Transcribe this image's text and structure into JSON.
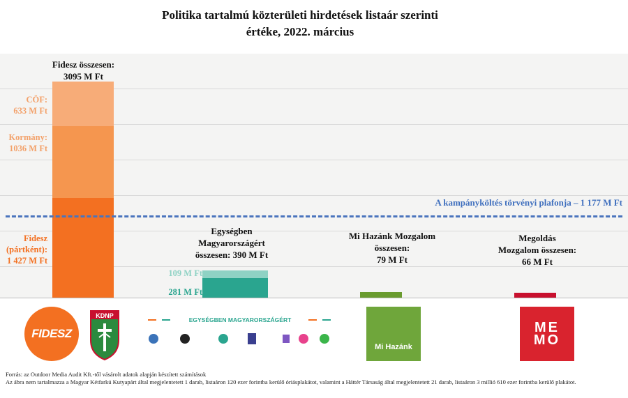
{
  "title_line1": "Politika tartalmú közterületi hirdetések listaár szerinti",
  "title_line2": "értéke, 2022. március",
  "chart_data": {
    "type": "bar",
    "stacked": true,
    "unit": "M Ft",
    "ylim": [
      0,
      3300
    ],
    "categories": [
      "Fidesz",
      "Egységben Magyarországért",
      "Mi Hazánk Mozgalom",
      "Megoldás Mozgalom"
    ],
    "segments": [
      {
        "category": "Fidesz",
        "label": "Fidesz (pártként): 1 427 M Ft",
        "value": 1427,
        "color": "#f37021"
      },
      {
        "category": "Fidesz",
        "label": "Kormány: 1036 M Ft",
        "value": 1036,
        "color": "#f5964f"
      },
      {
        "category": "Fidesz",
        "label": "CÖF: 633 M Ft",
        "value": 633,
        "color": "#f7ac78"
      },
      {
        "category": "Egységben Magyarországért",
        "label": "281 M Ft",
        "value": 281,
        "color": "#2aa58f"
      },
      {
        "category": "Egységben Magyarországért",
        "label": "109 M Ft",
        "value": 109,
        "color": "#8fd2c4"
      },
      {
        "category": "Mi Hazánk Mozgalom",
        "label": "",
        "value": 79,
        "color": "#6a9b2f"
      },
      {
        "category": "Megoldás Mozgalom",
        "label": "",
        "value": 66,
        "color": "#c8102e"
      }
    ],
    "totals": [
      {
        "category": "Fidesz",
        "text": "Fidesz összesen: 3095 M Ft",
        "value": 3095
      },
      {
        "category": "Egységben Magyarországért",
        "text": "Egységben Magyarországért összesen: 390 M Ft",
        "value": 390
      },
      {
        "category": "Mi Hazánk Mozgalom",
        "text": "Mi Hazánk Mozgalom összesen: 79 M Ft",
        "value": 79
      },
      {
        "category": "Megoldás Mozgalom",
        "text": "Megoldás Mozgalom összesen: 66 M Ft",
        "value": 66
      }
    ],
    "reference_line": {
      "label": "A kampányköltés törvényi plafonja – 1 177 M Ft",
      "value": 1177,
      "color": "#4a74bd"
    }
  },
  "labels": {
    "fidesz_total": [
      "Fidesz összesen:",
      "3095 M Ft"
    ],
    "cof": [
      "CÖF:",
      "633 M Ft"
    ],
    "kormany": [
      "Kormány:",
      "1036 M Ft"
    ],
    "fidesz_part": [
      "Fidesz",
      "(pártként):",
      "1 427 M Ft"
    ],
    "eme_total": [
      "Egységben",
      "Magyarországért",
      "összesen: 390 M Ft"
    ],
    "eme_109": "109 M Ft",
    "eme_281": "281 M Ft",
    "mihazank_total": [
      "Mi Hazánk Mozgalom",
      "összesen:",
      "79 M Ft"
    ],
    "memo_total": [
      "Megoldás",
      "Mozgalom összesen:",
      "66 M Ft"
    ]
  },
  "logos": {
    "fidesz": "FIDESZ",
    "kdnp": "KDNP",
    "eme": "EGYSÉGBEN MAGYARORSZÁGÉRT",
    "mihazank": "Mi Hazánk",
    "memo": "MEMO"
  },
  "footnote": {
    "line1": "Forrás: az Outdoor Media Audit Kft.-től vásárolt adatok alapján készített számítások",
    "line2": "Az ábra nem tartalmazza a Magyar Kétfarkú Kutyapárt által megjelentetett 1 darab, listaáron 120 ezer forintba kerülő óriásplakátot, valamint a Háttér Társaság által megjelentetett 21 darab, listaáron 3 millió 610 ezer forintba kerülő plakátot."
  }
}
